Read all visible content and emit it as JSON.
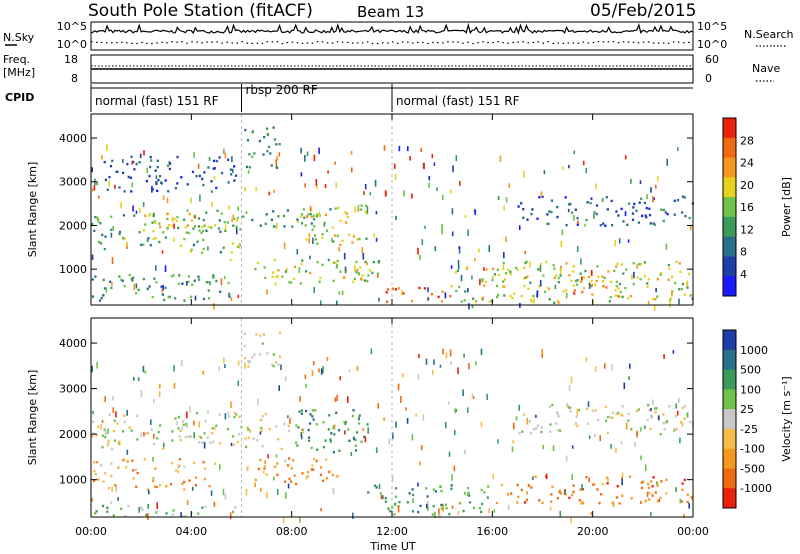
{
  "header": {
    "station": "South Pole Station (fitACF)",
    "beam": "Beam 13",
    "date": "05/Feb/2015"
  },
  "top_panels": {
    "nsky_label": "N.Sky",
    "nsky_ticks": [
      "10^5",
      "10^0"
    ],
    "nsearch_label": "N.Search",
    "freq_label": "Freq.",
    "freq_unit": "[MHz]",
    "freq_ticks": [
      "18",
      "8"
    ],
    "nave_ticks": [
      "60",
      "0"
    ],
    "nave_label": "Nave",
    "cpid_label": "CPID"
  },
  "cpid_segments": [
    {
      "label": "normal (fast) 151 RF",
      "start": 0,
      "end": 6
    },
    {
      "label": "rbsp 200 RF",
      "start": 6,
      "end": 12
    },
    {
      "label": "normal (fast) 151 RF",
      "start": 12,
      "end": 24
    }
  ],
  "colors": {
    "power_scale": [
      "#1a1aff",
      "#1f3fa8",
      "#2a6f8a",
      "#3c9a5a",
      "#6cc24a",
      "#e6d21e",
      "#f39a1c",
      "#f06a12",
      "#e8200c"
    ],
    "velocity_scale": [
      "#e8200c",
      "#f06a12",
      "#f39a1c",
      "#f7bd4a",
      "#c8c8c8",
      "#6cc24a",
      "#3c9a5a",
      "#2a6f8a",
      "#1f3fa8"
    ]
  },
  "chart_data": [
    {
      "type": "heatmap",
      "name": "power",
      "ylabel": "Slant Range [km]",
      "yticks": [
        "1000",
        "2000",
        "3000",
        "4000"
      ],
      "ylim": [
        180,
        4550
      ],
      "colorbar_label": "Power [dB]",
      "colorbar_ticks": [
        "4",
        "8",
        "12",
        "16",
        "20",
        "24",
        "28"
      ],
      "regions": [
        {
          "t0": 0.0,
          "t1": 6.0,
          "r0": 1400,
          "r1": 2300,
          "level": 0.45
        },
        {
          "t0": 2.0,
          "t1": 4.0,
          "r0": 1800,
          "r1": 2300,
          "level": 0.65
        },
        {
          "t0": 4.0,
          "t1": 9.5,
          "r0": 2000,
          "r1": 2400,
          "level": 0.4
        },
        {
          "t0": 8.5,
          "t1": 11.0,
          "r0": 1500,
          "r1": 2500,
          "level": 0.6
        },
        {
          "t0": 6.5,
          "t1": 11.5,
          "r0": 700,
          "r1": 1300,
          "level": 0.55
        },
        {
          "t0": 0.0,
          "t1": 6.0,
          "r0": 300,
          "r1": 900,
          "level": 0.35
        },
        {
          "t0": 11.5,
          "t1": 14.5,
          "r0": 250,
          "r1": 650,
          "level": 0.85
        },
        {
          "t0": 14.5,
          "t1": 24.0,
          "r0": 250,
          "r1": 1200,
          "level": 0.55
        },
        {
          "t0": 19.0,
          "t1": 21.0,
          "r0": 400,
          "r1": 900,
          "level": 0.8
        },
        {
          "t0": 17.0,
          "t1": 24.0,
          "r0": 2000,
          "r1": 2700,
          "level": 0.2
        },
        {
          "t0": 0.5,
          "t1": 6.0,
          "r0": 2800,
          "r1": 3600,
          "level": 0.15
        },
        {
          "t0": 6.0,
          "t1": 7.5,
          "r0": 3300,
          "r1": 4300,
          "level": 0.35
        }
      ]
    },
    {
      "type": "heatmap",
      "name": "velocity",
      "ylabel": "Slant Range [km]",
      "yticks": [
        "1000",
        "2000",
        "3000",
        "4000"
      ],
      "ylim": [
        180,
        4550
      ],
      "colorbar_label": "Velocity [m s⁻¹]",
      "colorbar_ticks": [
        "1000",
        "500",
        "100",
        "25",
        "-25",
        "-100",
        "-500",
        "-1000"
      ],
      "xlabel": "Time UT",
      "xticks": [
        "00:00",
        "04:00",
        "08:00",
        "12:00",
        "16:00",
        "20:00",
        "00:00"
      ],
      "xlim": [
        0,
        24
      ],
      "regions": [
        {
          "t0": 0.0,
          "t1": 8.0,
          "r0": 1700,
          "r1": 2500,
          "level": 0.5
        },
        {
          "t0": 8.0,
          "t1": 11.0,
          "r0": 1600,
          "r1": 2600,
          "level": 0.75
        },
        {
          "t0": 6.5,
          "t1": 10.0,
          "r0": 900,
          "r1": 1500,
          "level": 0.22
        },
        {
          "t0": 0.0,
          "t1": 5.0,
          "r0": 800,
          "r1": 1500,
          "level": 0.3
        },
        {
          "t0": 11.0,
          "t1": 16.0,
          "r0": 250,
          "r1": 900,
          "level": 0.72
        },
        {
          "t0": 16.0,
          "t1": 24.0,
          "r0": 500,
          "r1": 1100,
          "level": 0.18
        },
        {
          "t0": 17.0,
          "t1": 24.0,
          "r0": 2000,
          "r1": 2700,
          "level": 0.5
        },
        {
          "t0": 0.0,
          "t1": 6.0,
          "r0": 200,
          "r1": 450,
          "level": 0.62
        },
        {
          "t0": 6.0,
          "t1": 7.5,
          "r0": 3400,
          "r1": 4300,
          "level": 0.5
        }
      ]
    }
  ]
}
